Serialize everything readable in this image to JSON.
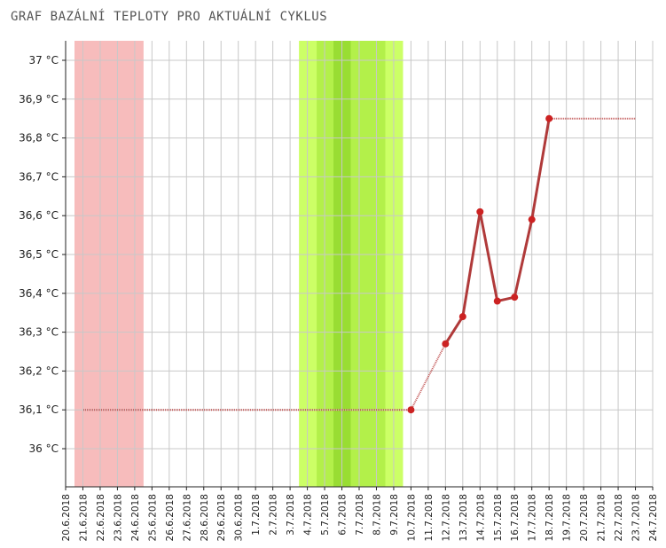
{
  "title": "GRAF BAZÁLNÍ TEPLOTY PRO AKTUÁLNÍ CYKLUS",
  "colors": {
    "period_band": "#f7bcbc",
    "fertile_band": "#ccff66",
    "fertile_band_light": "#c3fb5c",
    "fertile_band_mid": "#b3f04a",
    "ovulation_band": "#99dd33",
    "line": "#b03a3a",
    "dots": "#cc2222",
    "dotted": "#c25555",
    "grid": "#c8c8c8",
    "axis": "#222222"
  },
  "chart_data": {
    "type": "line",
    "title": "GRAF BAZÁLNÍ TEPLOTY PRO AKTUÁLNÍ CYKLUS",
    "xlabel": "",
    "ylabel": "",
    "grid": true,
    "ylim": [
      35.9,
      37.05
    ],
    "y_ticks": [
      {
        "value": 36.0,
        "label": "36 °C"
      },
      {
        "value": 36.1,
        "label": "36,1 °C"
      },
      {
        "value": 36.2,
        "label": "36,2 °C"
      },
      {
        "value": 36.3,
        "label": "36,3 °C"
      },
      {
        "value": 36.4,
        "label": "36,4 °C"
      },
      {
        "value": 36.5,
        "label": "36,5 °C"
      },
      {
        "value": 36.6,
        "label": "36,6 °C"
      },
      {
        "value": 36.7,
        "label": "36,7 °C"
      },
      {
        "value": 36.8,
        "label": "36,8 °C"
      },
      {
        "value": 36.9,
        "label": "36,9 °C"
      },
      {
        "value": 37.0,
        "label": "37 °C"
      }
    ],
    "categories": [
      "20.6.2018",
      "21.6.2018",
      "22.6.2018",
      "23.6.2018",
      "24.6.2018",
      "25.6.2018",
      "26.6.2018",
      "27.6.2018",
      "28.6.2018",
      "29.6.2018",
      "30.6.2018",
      "1.7.2018",
      "2.7.2018",
      "3.7.2018",
      "4.7.2018",
      "5.7.2018",
      "6.7.2018",
      "7.7.2018",
      "8.7.2018",
      "9.7.2018",
      "10.7.2018",
      "11.7.2018",
      "12.7.2018",
      "13.7.2018",
      "14.7.2018",
      "15.7.2018",
      "16.7.2018",
      "17.7.2018",
      "18.7.2018",
      "19.7.2018",
      "20.7.2018",
      "21.7.2018",
      "22.7.2018",
      "23.7.2018",
      "24.7.2018"
    ],
    "bands": [
      {
        "kind": "period",
        "from": "20.6.2018",
        "to": "24.6.2018"
      },
      {
        "kind": "fertile",
        "from": "3.7.2018",
        "to": "8.7.2018"
      },
      {
        "kind": "ovulation",
        "from": "5.7.2018",
        "to": "6.7.2018"
      }
    ],
    "baseline": {
      "value": 36.1,
      "from": "20.6.2018",
      "to": "10.7.2018"
    },
    "interpolated": [
      {
        "from_date": "10.7.2018",
        "from_value": 36.1,
        "to_date": "12.7.2018",
        "to_value": 36.27
      }
    ],
    "projection": {
      "value": 36.85,
      "from": "18.7.2018",
      "to": "23.7.2018"
    },
    "series": [
      {
        "points": [
          {
            "date": "10.7.2018",
            "value": 36.1
          },
          {
            "date": "12.7.2018",
            "value": 36.27
          },
          {
            "date": "13.7.2018",
            "value": 36.34
          },
          {
            "date": "14.7.2018",
            "value": 36.61
          },
          {
            "date": "15.7.2018",
            "value": 36.38
          },
          {
            "date": "16.7.2018",
            "value": 36.39
          },
          {
            "date": "17.7.2018",
            "value": 36.59
          },
          {
            "date": "18.7.2018",
            "value": 36.85
          }
        ],
        "connected_from": "12.7.2018"
      }
    ]
  }
}
